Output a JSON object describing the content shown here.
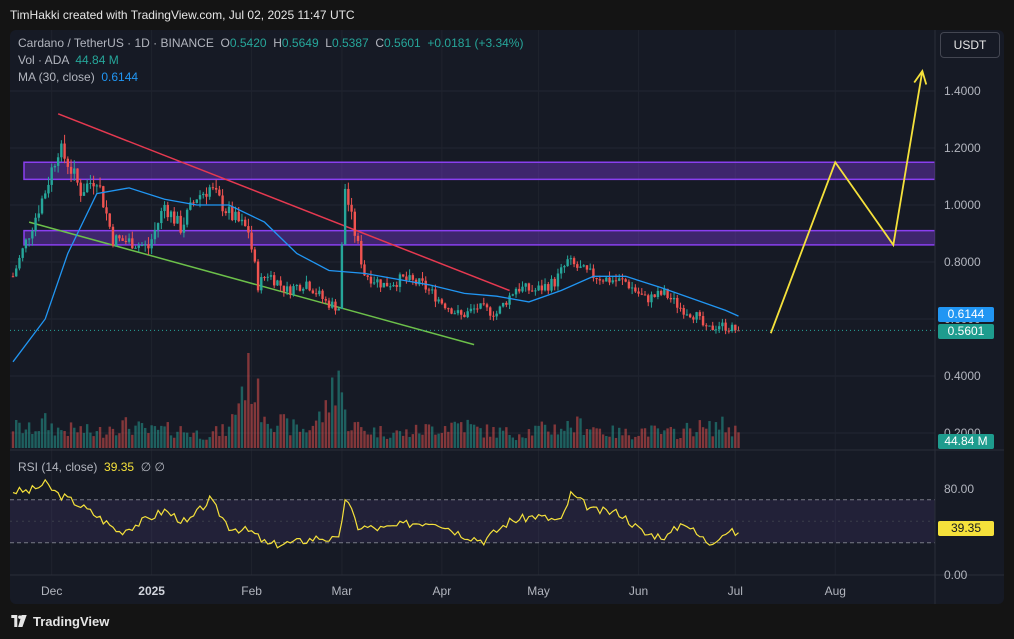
{
  "header": {
    "text": "TimHakki created with TradingView.com, Jul 02, 2025 11:47 UTC"
  },
  "footer": {
    "logo_text": "TradingView"
  },
  "legend": {
    "symbol": "Cardano / TetherUS · 1D · BINANCE",
    "o_label": "O",
    "o": "0.5420",
    "h_label": "H",
    "h": "0.5649",
    "l_label": "L",
    "l": "0.5387",
    "c_label": "C",
    "c": "0.5601",
    "change": "+0.0181 (+3.34%)",
    "vol_label": "Vol · ADA",
    "vol": "44.84 M",
    "ma_label": "MA (30, close)",
    "ma": "0.6144"
  },
  "rsi_legend": {
    "label": "RSI (14, close)",
    "value": "39.35",
    "icons": "∅  ∅"
  },
  "currency_button": "USDT",
  "badges": {
    "ma": "0.6144",
    "price": "0.5601",
    "volume": "44.84 M",
    "rsi": "39.35"
  },
  "colors": {
    "up": "#26a69a",
    "down": "#ef5350",
    "ma": "#2196f3",
    "rsi": "#f5e13b",
    "zone": "#8a3ff0",
    "resistance": "#e53950",
    "support": "#6cc04a",
    "projection": "#f5e13b"
  },
  "chart_data": [
    {
      "type": "line",
      "title": "Cardano / TetherUS · 1D · BINANCE",
      "xlabel": "",
      "ylabel": "",
      "x_ticks": [
        "Dec",
        "2025",
        "Feb",
        "Mar",
        "Apr",
        "May",
        "Jun",
        "Jul",
        "Aug"
      ],
      "y_ticks": [
        "0.2000",
        "0.4000",
        "0.6000",
        "0.8000",
        "1.0000",
        "1.2000",
        "1.4000"
      ],
      "ylim": [
        0.2,
        1.5
      ],
      "x_range": [
        "2024-11-19",
        "2025-08-31"
      ],
      "series": [
        {
          "name": "Cardano / TetherUS",
          "x": [
            "2024-11-19",
            "2024-11-24",
            "2024-11-29",
            "2024-12-03",
            "2024-12-06",
            "2024-12-10",
            "2024-12-15",
            "2024-12-20",
            "2024-12-26",
            "2024-12-31",
            "2025-01-05",
            "2025-01-10",
            "2025-01-15",
            "2025-01-19",
            "2025-01-25",
            "2025-01-31",
            "2025-02-03",
            "2025-02-06",
            "2025-02-12",
            "2025-02-18",
            "2025-02-24",
            "2025-02-28",
            "2025-03-02",
            "2025-03-04",
            "2025-03-08",
            "2025-03-14",
            "2025-03-20",
            "2025-03-26",
            "2025-04-01",
            "2025-04-07",
            "2025-04-12",
            "2025-04-18",
            "2025-04-24",
            "2025-04-30",
            "2025-05-06",
            "2025-05-10",
            "2025-05-16",
            "2025-05-22",
            "2025-05-28",
            "2025-06-03",
            "2025-06-09",
            "2025-06-14",
            "2025-06-19",
            "2025-06-22",
            "2025-06-26",
            "2025-07-02"
          ],
          "values": [
            0.75,
            0.9,
            1.05,
            1.2,
            1.15,
            1.05,
            1.1,
            0.88,
            0.87,
            0.85,
            1.0,
            0.92,
            1.03,
            1.06,
            0.97,
            0.91,
            0.72,
            0.76,
            0.7,
            0.73,
            0.66,
            0.64,
            1.06,
            0.95,
            0.76,
            0.72,
            0.74,
            0.72,
            0.66,
            0.61,
            0.64,
            0.62,
            0.71,
            0.7,
            0.73,
            0.8,
            0.76,
            0.74,
            0.73,
            0.67,
            0.69,
            0.64,
            0.61,
            0.56,
            0.58,
            0.56
          ]
        },
        {
          "name": "MA (30, close)",
          "x": [
            "2024-11-19",
            "2024-11-29",
            "2024-12-06",
            "2024-12-15",
            "2024-12-25",
            "2025-01-05",
            "2025-01-15",
            "2025-01-25",
            "2025-02-05",
            "2025-02-15",
            "2025-02-25",
            "2025-03-08",
            "2025-03-18",
            "2025-03-28",
            "2025-04-08",
            "2025-04-18",
            "2025-04-28",
            "2025-05-08",
            "2025-05-18",
            "2025-05-28",
            "2025-06-08",
            "2025-06-18",
            "2025-06-28",
            "2025-07-02"
          ],
          "values": [
            0.45,
            0.6,
            0.83,
            1.04,
            1.06,
            1.02,
            1.0,
            1.0,
            0.94,
            0.83,
            0.77,
            0.76,
            0.74,
            0.72,
            0.69,
            0.68,
            0.66,
            0.7,
            0.75,
            0.75,
            0.71,
            0.67,
            0.63,
            0.61
          ]
        }
      ],
      "overlays": {
        "resistance_zones": [
          [
            1.09,
            1.15
          ],
          [
            0.86,
            0.91
          ]
        ],
        "resistance_trendline": [
          [
            "2024-12-03",
            1.32
          ],
          [
            "2025-04-22",
            0.7
          ]
        ],
        "support_trendline": [
          [
            "2024-11-24",
            0.94
          ],
          [
            "2025-04-11",
            0.51
          ]
        ],
        "projection": [
          [
            "2025-07-12",
            0.55
          ],
          [
            "2025-08-01",
            1.15
          ],
          [
            "2025-08-19",
            0.86
          ],
          [
            "2025-08-28",
            1.47
          ]
        ]
      }
    },
    {
      "type": "bar",
      "title": "Vol · ADA",
      "values_relative": [
        0.12,
        0.1,
        0.14,
        0.1,
        0.1,
        0.1,
        0.08,
        0.13,
        0.12,
        0.09,
        0.1,
        0.1,
        0.08,
        0.08,
        0.1,
        0.45,
        0.27,
        0.18,
        0.12,
        0.1,
        0.2,
        0.45,
        0.17,
        0.13,
        0.1,
        0.09,
        0.08,
        0.1,
        0.12,
        0.14,
        0.1,
        0.09,
        0.08,
        0.1,
        0.11,
        0.12,
        0.13,
        0.09,
        0.08,
        0.1,
        0.08,
        0.09,
        0.12,
        0.1,
        0.13,
        0.09
      ]
    },
    {
      "type": "line",
      "title": "RSI (14, close)",
      "y_ticks": [
        "0.00",
        "80.00"
      ],
      "ylim": [
        0,
        100
      ],
      "bands": [
        30,
        70
      ],
      "series": [
        {
          "name": "RSI (14, close)",
          "x": [
            "2024-11-19",
            "2024-11-24",
            "2024-11-29",
            "2024-12-03",
            "2024-12-08",
            "2024-12-15",
            "2024-12-22",
            "2024-12-28",
            "2025-01-05",
            "2025-01-12",
            "2025-01-19",
            "2025-01-25",
            "2025-02-01",
            "2025-02-06",
            "2025-02-14",
            "2025-02-22",
            "2025-02-28",
            "2025-03-02",
            "2025-03-06",
            "2025-03-14",
            "2025-03-22",
            "2025-03-30",
            "2025-04-07",
            "2025-04-14",
            "2025-04-22",
            "2025-04-30",
            "2025-05-08",
            "2025-05-11",
            "2025-05-18",
            "2025-05-26",
            "2025-06-03",
            "2025-06-10",
            "2025-06-15",
            "2025-06-19",
            "2025-06-23",
            "2025-06-28",
            "2025-07-02"
          ],
          "values": [
            78,
            78,
            85,
            75,
            68,
            55,
            40,
            48,
            60,
            48,
            70,
            45,
            40,
            28,
            30,
            35,
            32,
            72,
            45,
            43,
            48,
            50,
            38,
            32,
            50,
            55,
            50,
            75,
            60,
            58,
            38,
            36,
            50,
            38,
            30,
            40,
            39.35
          ]
        }
      ]
    }
  ]
}
